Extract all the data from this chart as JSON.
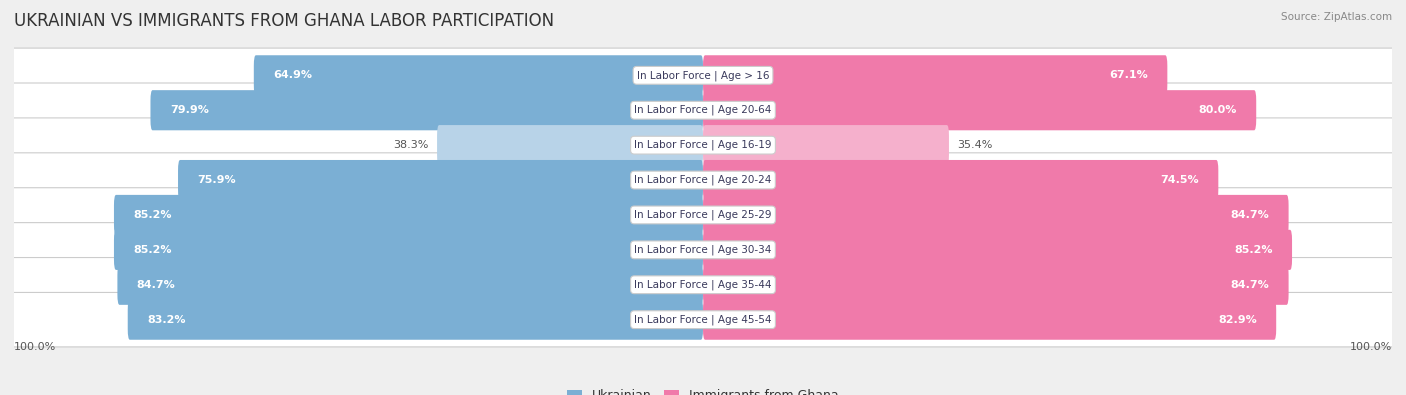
{
  "title": "UKRAINIAN VS IMMIGRANTS FROM GHANA LABOR PARTICIPATION",
  "source": "Source: ZipAtlas.com",
  "categories": [
    "In Labor Force | Age > 16",
    "In Labor Force | Age 20-64",
    "In Labor Force | Age 16-19",
    "In Labor Force | Age 20-24",
    "In Labor Force | Age 25-29",
    "In Labor Force | Age 30-34",
    "In Labor Force | Age 35-44",
    "In Labor Force | Age 45-54"
  ],
  "ukrainian_values": [
    64.9,
    79.9,
    38.3,
    75.9,
    85.2,
    85.2,
    84.7,
    83.2
  ],
  "ghana_values": [
    67.1,
    80.0,
    35.4,
    74.5,
    84.7,
    85.2,
    84.7,
    82.9
  ],
  "ukrainian_color": "#7bafd4",
  "ukrainian_color_light": "#b8d3e8",
  "ghana_color": "#f07aaa",
  "ghana_color_light": "#f5b0cc",
  "background_color": "#efefef",
  "row_bg_color": "#ffffff",
  "max_value": 100.0,
  "legend_ukrainian": "Ukrainian",
  "legend_ghana": "Immigrants from Ghana",
  "title_fontsize": 12,
  "label_fontsize": 8,
  "value_fontsize": 8,
  "threshold": 50,
  "bottom_label": "100.0%"
}
